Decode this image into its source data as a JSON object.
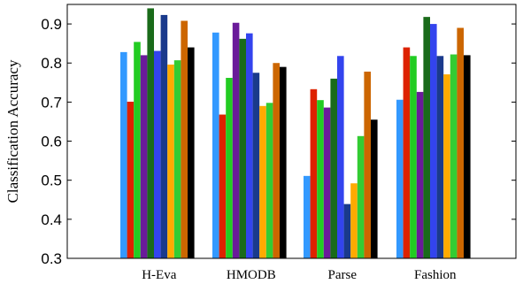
{
  "chart_data": {
    "type": "bar",
    "title": "",
    "xlabel": "",
    "ylabel": "Classification Accuracy",
    "ylim": [
      0.3,
      0.95
    ],
    "yticks": [
      0.3,
      0.4,
      0.5,
      0.6,
      0.7,
      0.8,
      0.9
    ],
    "ytick_labels": [
      "0.3",
      "0.4",
      "0.5",
      "0.6",
      "0.7",
      "0.8",
      "0.9"
    ],
    "grid": false,
    "legend": false,
    "categories": [
      "H-Eva",
      "HMODB",
      "Parse",
      "Fashion"
    ],
    "series": [
      {
        "color": "#3399ff",
        "values": [
          0.828,
          0.878,
          0.511,
          0.706
        ]
      },
      {
        "color": "#dd2200",
        "values": [
          0.701,
          0.668,
          0.733,
          0.84
        ]
      },
      {
        "color": "#22cc22",
        "values": [
          0.854,
          0.762,
          0.705,
          0.818
        ]
      },
      {
        "color": "#6a1b9a",
        "values": [
          0.82,
          0.903,
          0.686,
          0.726
        ]
      },
      {
        "color": "#1a6b1a",
        "values": [
          0.94,
          0.862,
          0.76,
          0.918
        ]
      },
      {
        "color": "#3344ee",
        "values": [
          0.831,
          0.876,
          0.818,
          0.9
        ]
      },
      {
        "color": "#1a3a8c",
        "values": [
          0.923,
          0.775,
          0.439,
          0.818
        ]
      },
      {
        "color": "#ffaa00",
        "values": [
          0.796,
          0.69,
          0.492,
          0.771
        ]
      },
      {
        "color": "#33cc33",
        "values": [
          0.807,
          0.698,
          0.613,
          0.822
        ]
      },
      {
        "color": "#cc6600",
        "values": [
          0.908,
          0.8,
          0.778,
          0.89
        ]
      },
      {
        "color": "#000000",
        "values": [
          0.84,
          0.79,
          0.655,
          0.82
        ]
      }
    ]
  }
}
